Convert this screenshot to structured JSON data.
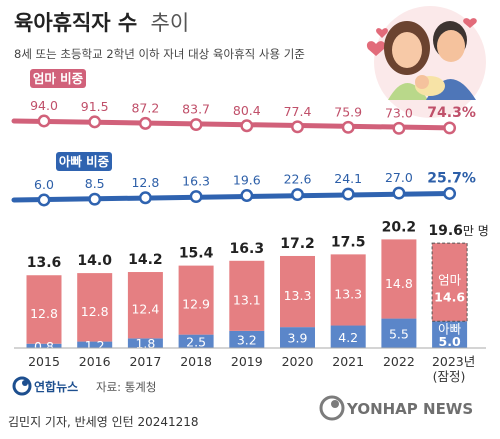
{
  "header": {
    "title_main": "육아휴직자 수",
    "title_sub": "추이",
    "subtitle": "8세 또는 초등학교 2학년 이하 자녀 대상 육아휴직 사용 기준"
  },
  "chart_data": {
    "type": "bar",
    "categories": [
      "2015",
      "2016",
      "2017",
      "2018",
      "2019",
      "2020",
      "2021",
      "2022",
      "2023년"
    ],
    "category_note": "(잠정)",
    "unit": "만 명",
    "series": [
      {
        "name": "아빠",
        "values": [
          0.8,
          1.2,
          1.8,
          2.5,
          3.2,
          3.9,
          4.2,
          5.5,
          5.0
        ],
        "color": "#5b86c9"
      },
      {
        "name": "엄마",
        "values": [
          12.8,
          12.8,
          12.4,
          12.9,
          13.1,
          13.3,
          13.3,
          14.8,
          14.6
        ],
        "color": "#e57f82"
      }
    ],
    "totals": [
      "13.6",
      "14.0",
      "14.2",
      "15.4",
      "16.3",
      "17.2",
      "17.5",
      "20.2",
      "19.6"
    ],
    "share_lines": [
      {
        "name": "엄마 비중",
        "values": [
          94.0,
          91.5,
          87.2,
          83.7,
          80.4,
          77.4,
          75.9,
          73.0,
          74.3
        ],
        "labels": [
          "94.0",
          "91.5",
          "87.2",
          "83.7",
          "80.4",
          "77.4",
          "75.9",
          "73.0",
          "74.3%"
        ],
        "color": "#d1617a"
      },
      {
        "name": "아빠 비중",
        "values": [
          6.0,
          8.5,
          12.8,
          16.3,
          19.6,
          22.6,
          24.1,
          27.0,
          25.7
        ],
        "labels": [
          "6.0",
          "8.5",
          "12.8",
          "16.3",
          "19.6",
          "22.6",
          "24.1",
          "27.0",
          "25.7%"
        ],
        "color": "#2f63b0"
      }
    ],
    "last_bar_labels": {
      "mom": "엄마",
      "dad": "아빠"
    },
    "ylim": [
      0,
      21
    ]
  },
  "footer": {
    "source": "자료: 통계청",
    "logo_text": "연합뉴스",
    "credit": "김민지 기자, 반세영 인턴  20241218",
    "watermark": "YONHAP NEWS"
  },
  "colors": {
    "mom_bar": "#e57f82",
    "dad_bar": "#5b86c9",
    "mom_line": "#d1617a",
    "dad_line": "#2f63b0"
  }
}
